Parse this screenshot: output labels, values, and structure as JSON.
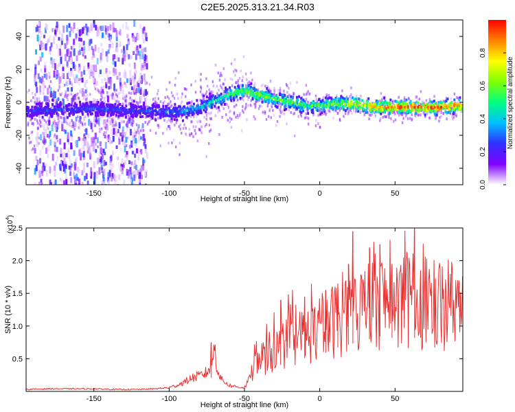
{
  "title": "C2E5.2025.313.21.34.R03",
  "colors": {
    "snr_line": "#e83030",
    "background": "#ffffff",
    "axis": "#000000"
  },
  "chart_data": [
    {
      "type": "heatmap",
      "title": "C2E5.2025.313.21.34.R03",
      "xlabel": "Height of straight line (km)",
      "ylabel": "Frequency (Hz)",
      "xlim": [
        -195,
        95
      ],
      "ylim": [
        -50,
        50
      ],
      "x_ticks": [
        -150,
        -100,
        -50,
        0,
        50
      ],
      "x_tick_labels": [
        "-150",
        "-100",
        "-50",
        "0",
        "50"
      ],
      "y_ticks": [
        -40,
        -20,
        0,
        20,
        40
      ],
      "y_tick_labels": [
        "-40",
        "-20",
        "0",
        "20",
        "40"
      ],
      "colorbar": {
        "label": "Normalized spectral amplitude",
        "range": [
          0.0,
          1.0
        ],
        "ticks": [
          0.0,
          0.2,
          0.4,
          0.6,
          0.8
        ],
        "tick_labels": [
          "0.0",
          "0.2",
          "0.4",
          "0.6",
          "0.8"
        ],
        "colormap": [
          "#ffffff",
          "#8000ff",
          "#3030ff",
          "#00c0ff",
          "#00ff80",
          "#80ff00",
          "#ffff00",
          "#ff8000",
          "#ff0000"
        ]
      },
      "ridge": {
        "x": [
          -190,
          -150,
          -120,
          -100,
          -90,
          -80,
          -70,
          -60,
          -50,
          -40,
          -30,
          -20,
          -10,
          0,
          10,
          20,
          30,
          40,
          50,
          60,
          70,
          80,
          90
        ],
        "frequency": [
          -5,
          -4,
          -5,
          -6,
          -5,
          -3,
          1,
          5,
          7,
          4,
          2,
          0,
          -2,
          -2,
          -1,
          -1,
          -2,
          -3,
          -3,
          -3,
          -3,
          -3,
          -2
        ],
        "amplitude": [
          0.25,
          0.25,
          0.25,
          0.3,
          0.35,
          0.4,
          0.45,
          0.55,
          0.6,
          0.6,
          0.6,
          0.55,
          0.55,
          0.55,
          0.6,
          0.7,
          0.8,
          0.85,
          0.9,
          0.9,
          0.9,
          0.9,
          0.85
        ]
      },
      "noise_region_x": [
        -190,
        -115
      ]
    },
    {
      "type": "line",
      "xlabel": "Height of straight line (km)",
      "ylabel": "SNR (10 * v/v)",
      "y_multiplier_label": "(x10",
      "y_multiplier_exp": "4",
      "xlim": [
        -195,
        95
      ],
      "ylim": [
        0,
        2.5
      ],
      "x_ticks": [
        -150,
        -100,
        -50,
        0,
        50
      ],
      "x_tick_labels": [
        "-150",
        "-100",
        "-50",
        "0",
        "50"
      ],
      "y_ticks": [
        0.5,
        1.0,
        1.5,
        2.0,
        2.5
      ],
      "y_tick_labels": [
        "0.5",
        "1.0",
        "1.5",
        "2.0",
        "2.5"
      ],
      "series": [
        {
          "name": "SNR",
          "x": [
            -195,
            -180,
            -165,
            -150,
            -135,
            -120,
            -110,
            -100,
            -95,
            -90,
            -85,
            -80,
            -75,
            -72,
            -70,
            -68,
            -65,
            -60,
            -55,
            -50,
            -47,
            -45,
            -42,
            -40,
            -35,
            -30,
            -25,
            -20,
            -15,
            -10,
            -5,
            0,
            5,
            10,
            15,
            20,
            25,
            30,
            35,
            40,
            45,
            50,
            55,
            60,
            65,
            70,
            75,
            80,
            85,
            90,
            95
          ],
          "values": [
            0.02,
            0.03,
            0.03,
            0.03,
            0.02,
            0.02,
            0.03,
            0.05,
            0.08,
            0.12,
            0.18,
            0.2,
            0.25,
            0.35,
            0.6,
            0.3,
            0.15,
            0.08,
            0.06,
            0.05,
            0.15,
            0.3,
            0.45,
            0.5,
            0.55,
            0.6,
            0.7,
            0.75,
            0.8,
            0.85,
            0.9,
            0.95,
            1.0,
            1.1,
            1.15,
            1.2,
            1.25,
            1.3,
            1.35,
            1.4,
            1.35,
            1.38,
            1.4,
            1.38,
            1.35,
            1.4,
            1.38,
            1.35,
            1.38,
            1.35,
            1.4
          ],
          "peaks": [
            {
              "x": 22,
              "value": 2.45
            },
            {
              "x": 33,
              "value": 2.2
            },
            {
              "x": 40,
              "value": 2.25
            },
            {
              "x": 63,
              "value": 2.5
            },
            {
              "x": 19,
              "value": 1.95
            },
            {
              "x": 48,
              "value": 1.95
            },
            {
              "x": 67,
              "value": 1.85
            },
            {
              "x": 12,
              "value": 1.65
            },
            {
              "x": 4,
              "value": 1.55
            },
            {
              "x": -26,
              "value": 1.4
            },
            {
              "x": -10,
              "value": 1.45
            },
            {
              "x": -72,
              "value": 0.75
            }
          ]
        }
      ]
    }
  ]
}
